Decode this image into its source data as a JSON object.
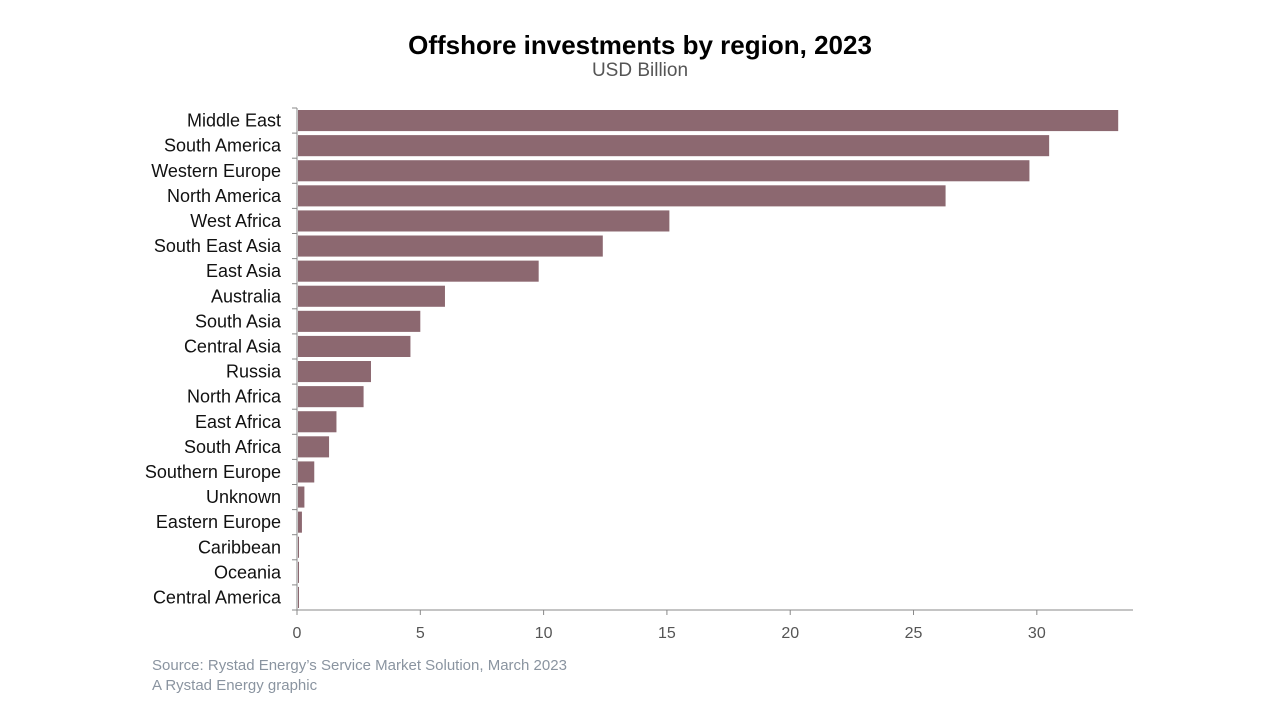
{
  "chart_data": {
    "type": "bar",
    "orientation": "horizontal",
    "title": "Offshore investments by region, 2023",
    "subtitle": "USD Billion",
    "categories": [
      "Middle East",
      "South America",
      "Western Europe",
      "North America",
      "West Africa",
      "South East Asia",
      "East Asia",
      "Australia",
      "South Asia",
      "Central Asia",
      "Russia",
      "North Africa",
      "East Africa",
      "South Africa",
      "Southern Europe",
      "Unknown",
      "Eastern Europe",
      "Caribbean",
      "Oceania",
      "Central America"
    ],
    "values": [
      33.3,
      30.5,
      29.7,
      26.3,
      15.1,
      12.4,
      9.8,
      6.0,
      5.0,
      4.6,
      3.0,
      2.7,
      1.6,
      1.3,
      0.7,
      0.3,
      0.2,
      0.08,
      0.07,
      0.07
    ],
    "xlim": [
      0,
      33.9
    ],
    "xticks": [
      0,
      5,
      10,
      15,
      20,
      25,
      30
    ],
    "grid": false,
    "bar_color": "#8c6870"
  },
  "footer": {
    "source": "Source: Rystad Energy’s Service Market Solution, March 2023",
    "credit": "A Rystad Energy graphic"
  }
}
